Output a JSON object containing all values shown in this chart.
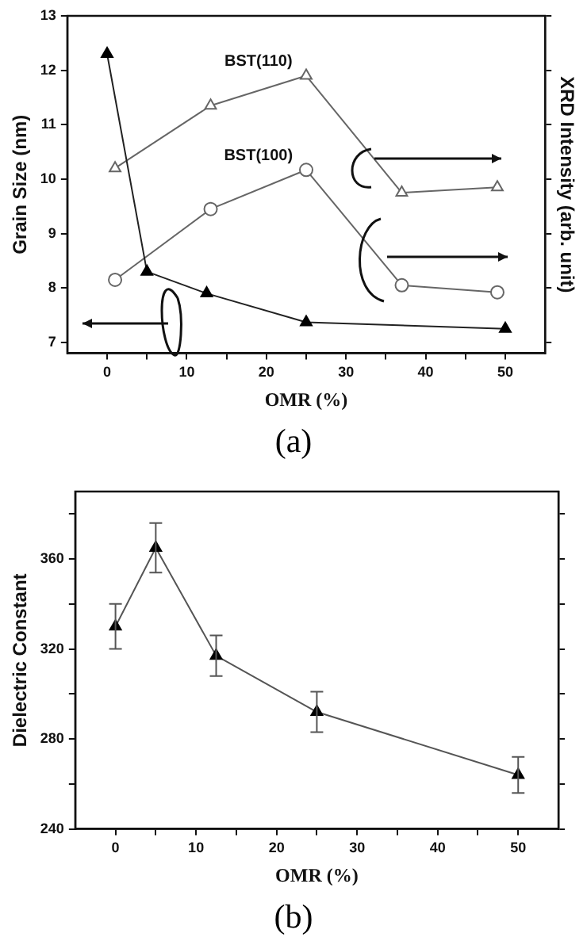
{
  "chart_data": [
    {
      "type": "line",
      "xlabel": "OMR (%)",
      "ylabel": "Grain Size (nm)",
      "y2label": "XRD Intensity (arb. unit)",
      "annotations": [
        "(a)"
      ],
      "xlim": [
        -5,
        55
      ],
      "xticks": [
        0,
        {
          "value": 5,
          "label": null
        },
        10,
        {
          "value": 15,
          "label": null
        },
        20,
        {
          "value": 25,
          "label": null
        },
        30,
        {
          "value": 35,
          "label": null
        },
        40,
        {
          "value": 45,
          "label": null
        },
        50
      ],
      "ylim": [
        6.8,
        13
      ],
      "yticks": [
        7,
        8,
        9,
        10,
        11,
        12,
        13
      ],
      "grid": false,
      "legend": false,
      "series": [
        {
          "x": [
            0,
            5,
            12.5,
            25,
            50
          ],
          "values": [
            12.3,
            8.3,
            7.9,
            7.37,
            7.25
          ],
          "color": "#222222",
          "marker": "triangle"
        },
        {
          "name": "BST(110)",
          "x": [
            1,
            13,
            25,
            37,
            49
          ],
          "values": [
            10.2,
            11.35,
            11.9,
            9.75,
            9.85
          ],
          "color": "#666666",
          "marker": "triangle"
        },
        {
          "name": "BST(100)",
          "x": [
            1,
            13,
            25,
            37,
            49
          ],
          "values": [
            8.15,
            9.45,
            10.17,
            8.05,
            7.92
          ],
          "color": "#666666",
          "marker": "circle"
        }
      ]
    },
    {
      "type": "line",
      "xlabel": "OMR (%)",
      "ylabel": "Dielectric Constant",
      "annotations": [
        "(b)"
      ],
      "xlim": [
        -5,
        55
      ],
      "xticks": [
        0,
        {
          "value": 5,
          "label": null
        },
        10,
        {
          "value": 15,
          "label": null
        },
        20,
        {
          "value": 25,
          "label": null
        },
        30,
        {
          "value": 35,
          "label": null
        },
        40,
        {
          "value": 45,
          "label": null
        },
        50
      ],
      "ylim": [
        240,
        390
      ],
      "yticks": [
        240,
        {
          "value": 260,
          "label": null
        },
        280,
        {
          "value": 300,
          "label": null
        },
        320,
        {
          "value": 340,
          "label": null
        },
        360,
        {
          "value": 380,
          "label": null
        }
      ],
      "grid": false,
      "legend": false,
      "marker": "triangle",
      "series": [
        {
          "x": [
            0,
            5,
            12.5,
            25,
            50
          ],
          "values": [
            330,
            365,
            317,
            292,
            264
          ],
          "errors": [
            10,
            11,
            9,
            9,
            8
          ],
          "color": "#555555"
        }
      ]
    }
  ]
}
